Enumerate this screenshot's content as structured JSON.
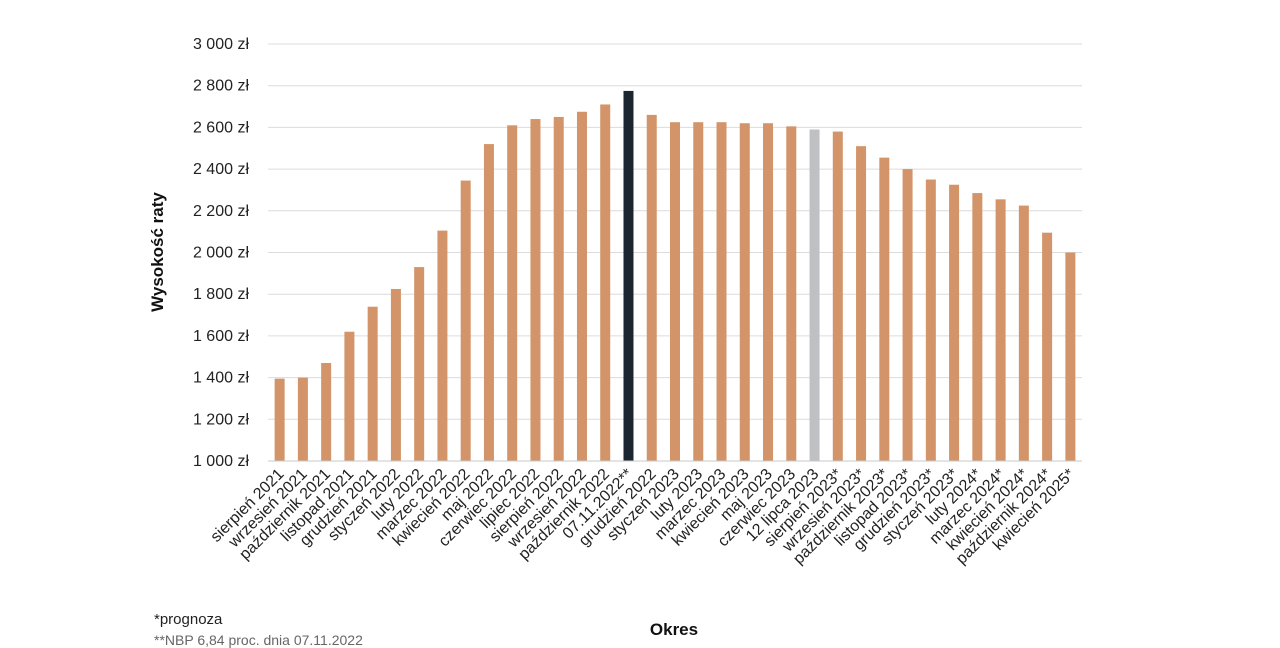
{
  "chart_data": {
    "type": "bar",
    "title": "",
    "xlabel": "Okres",
    "ylabel": "Wysokość raty",
    "ylim": [
      1000,
      3000
    ],
    "yticks": [
      "1 000 zł",
      "1 200 zł",
      "1 400 zł",
      "1 600 zł",
      "1 800 zł",
      "2 000 zł",
      "2 200 zł",
      "2 400 zł",
      "2 600 zł",
      "2 800 zł",
      "3 000 zł"
    ],
    "grid": "horizontal",
    "categories": [
      "sierpień 2021",
      "wrzesień 2021",
      "październik 2021",
      "listopad 2021",
      "grudzień 2021",
      "styczeń 2022",
      "luty 2022",
      "marzec 2022",
      "kwiecień 2022",
      "maj 2022",
      "czerwiec 2022",
      "lipiec 2022",
      "sierpień 2022",
      "wrzesień 2022",
      "październik 2022",
      "07.11.2022**",
      "grudzień 2022",
      "styczeń 2023",
      "luty 2023",
      "marzec 2023",
      "kwiecień 2023",
      "maj 2023",
      "czerwiec 2023",
      "12 lipca 2023",
      "sierpień 2023*",
      "wrzesień 2023*",
      "październik 2023*",
      "listopad 2023*",
      "grudzień 2023*",
      "styczeń 2023*",
      "luty 2024*",
      "marzec 2024*",
      "kwiecień 2024*",
      "październik 2024*",
      "kwiecień 2025*"
    ],
    "values": [
      1395,
      1400,
      1470,
      1620,
      1740,
      1825,
      1930,
      2105,
      2345,
      2520,
      2610,
      2640,
      2650,
      2675,
      2710,
      2775,
      2660,
      2625,
      2625,
      2625,
      2620,
      2620,
      2605,
      2590,
      2580,
      2510,
      2455,
      2400,
      2350,
      2325,
      2285,
      2255,
      2225,
      2095,
      2000
    ],
    "colors": {
      "default": "#d29468",
      "highlight_dark": "#1c2631",
      "highlight_gray": "#bfc0c4"
    },
    "highlights": {
      "07.11.2022**": "highlight_dark",
      "12 lipca 2023": "highlight_gray"
    }
  },
  "footnote": "*prognoza",
  "source": "**NBP 6,84 proc. dnia 07.11.2022"
}
